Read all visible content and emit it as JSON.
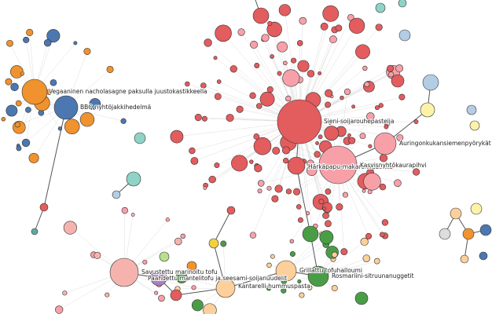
{
  "graph": {
    "labels": [
      "Vegaaninen nacholasagne paksulla juustokastikkeella",
      "BBQ nyhtöjakkihedelmä",
      "Sieni-soijarouhepasteija",
      "Auringonkukansiemenpyörykät",
      "Härkäpapu-makaronilaatikko",
      "Kasvisnyhtökaurapihvi",
      "Savustettu marinoitu tofu",
      "Paahdettu mantelitofu ja seesami-soijanuudelit",
      "Grillattu tofuhalloumi",
      "Rosmariini-sitruunanuggetit",
      "Kantarelli-hummuspasta"
    ]
  }
}
